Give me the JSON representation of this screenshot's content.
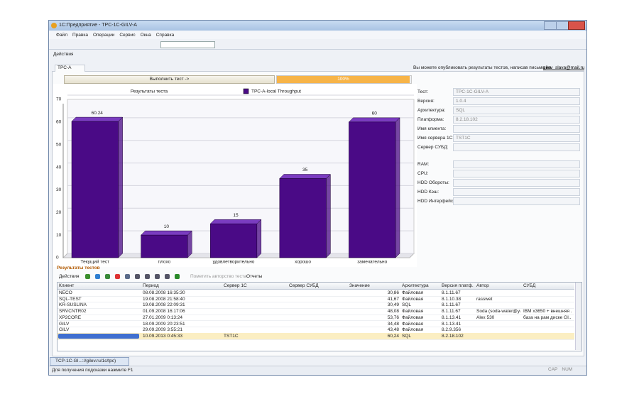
{
  "window": {
    "title": "1С:Предприятие - TPC-1C-GILV-A"
  },
  "menu": [
    "Файл",
    "Правка",
    "Операции",
    "Сервис",
    "Окна",
    "Справка"
  ],
  "actions": "Действия",
  "tab": "TPC-A",
  "notice": {
    "text": "Вы можете опубликовать результаты тестов, написав письмо на",
    "email": "gilev_slava@mail.ru"
  },
  "run_button": "Выполнить тест ->",
  "progress": {
    "value": 100,
    "label": "100%"
  },
  "chart_data": {
    "type": "bar",
    "title": "Результаты теста",
    "categories": [
      "Текущий тест",
      "плохо",
      "удовлетворительно",
      "хорошо",
      "замечательно"
    ],
    "series": [
      {
        "name": "TPC-A-local Throughput",
        "color": "#4a0a86",
        "values": [
          60.24,
          10,
          15,
          35,
          60
        ]
      }
    ],
    "ylim": [
      0,
      70
    ],
    "yticks": [
      0,
      10,
      20,
      30,
      40,
      50,
      60,
      70
    ],
    "grid": true
  },
  "info": [
    {
      "label": "Тест:",
      "value": "TPC-1C-GILV-A"
    },
    {
      "label": "Версия:",
      "value": "1.0.4"
    },
    {
      "label": "Архитектура:",
      "value": "SQL"
    },
    {
      "label": "Платформа:",
      "value": "8.2.18.102"
    },
    {
      "label": "Имя клиента:"
    },
    {
      "label": "Имя сервера 1С:",
      "value": "TST1C"
    },
    {
      "label": "Сервер СУБД:"
    },
    {
      "label": "RAM:"
    },
    {
      "label": "CPU:"
    },
    {
      "label": "HDD Обороты:"
    },
    {
      "label": "HDD Кэш:"
    },
    {
      "label": "HDD Интерфейс:"
    }
  ],
  "results": {
    "title": "Результаты тестов",
    "toolbar": [
      "Действия",
      "Пометить авторство теста",
      "Отчеты"
    ],
    "columns": [
      "Клиент",
      "Период",
      "Сервер 1С",
      "Сервер СУБД",
      "Значение",
      "Архитектура",
      "Версия платф...",
      "Автор",
      "СУБД"
    ],
    "rows": [
      [
        "NECO",
        "08.08.2008 16:35:30",
        null,
        null,
        "30,86",
        "Файловая",
        "8.1.11.67",
        null,
        null
      ],
      [
        "SQL-TEST",
        "19.08.2008 21:58:40",
        null,
        null,
        "41,67",
        "Файловая",
        "8.1.10.38",
        "rasswet",
        null
      ],
      [
        "KR-SUSLINA",
        "19.08.2008 22:09:31",
        null,
        null,
        "30,49",
        "SQL",
        "8.1.11.67",
        null,
        null
      ],
      [
        "SRVCNTR02",
        "01.09.2008 16:17:06",
        null,
        null,
        "48,08",
        "Файловая",
        "8.1.11.67",
        "Soda (soda-water@yan...",
        "IBM x3650 + внешняя ..."
      ],
      [
        "XP2CORE",
        "27.01.2009 0:13:24",
        null,
        null,
        "53,76",
        "Файловая",
        "8.1.13.41",
        "Alex 530",
        "база на рам диске GI..."
      ],
      [
        "GILV",
        "18.09.2009 20:23:51",
        null,
        null,
        "34,48",
        "Файловая",
        "8.1.13.41",
        null,
        null
      ],
      [
        "GILV",
        "29.09.2009 3:55:21",
        null,
        null,
        "43,48",
        "Файловая",
        "8.2.9.356",
        null,
        null
      ],
      [
        null,
        "10.09.2013 0:45:33",
        "TST1C",
        null,
        "60,24",
        "SQL",
        "8.2.18.102",
        null,
        null
      ]
    ]
  },
  "taskbar": "TCP-1C-GI...://gilev.ru/1c/tpc)",
  "status": {
    "hint": "Для получения подсказки нажмите F1",
    "indicators": [
      "CAP",
      "NUM"
    ]
  }
}
